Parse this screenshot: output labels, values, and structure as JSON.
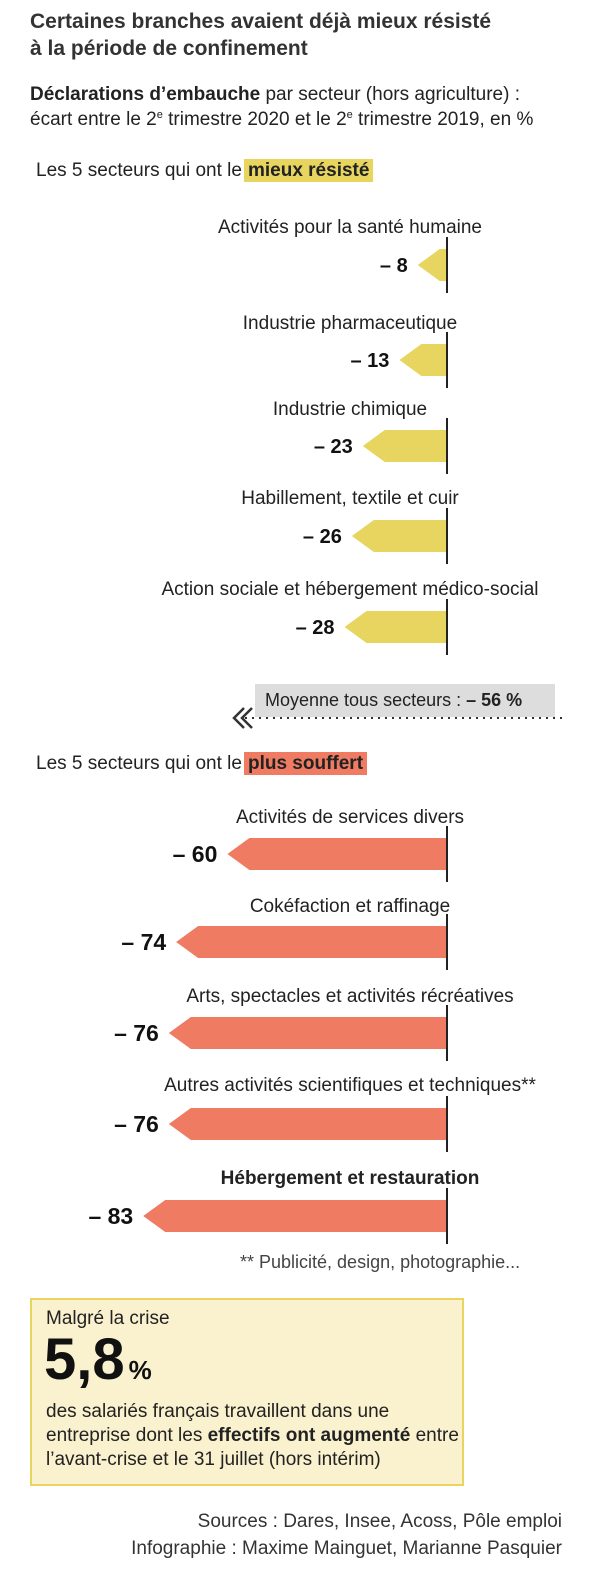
{
  "title_line1": "Certaines branches avaient  déjà mieux résisté",
  "title_line2": "à la période  de confinement",
  "subtitle": {
    "bold": "Déclarations d’embauche",
    "rest1": " par secteur (hors agriculture) :",
    "line2_a": "écart entre le 2",
    "sup": "e",
    "line2_b": " trimestre 2020 et le 2",
    "line2_c": " trimestre 2019, en %"
  },
  "section_best": {
    "prefix": "Les 5 secteurs qui ont  le",
    "highlight": "mieux résisté"
  },
  "section_worst": {
    "prefix": "Les 5 secteurs qui ont  le",
    "highlight": "plus souffert"
  },
  "average": {
    "label": "Moyenne tous secteurs : ",
    "value": "– 56 %"
  },
  "footnote": "** Publicité, design, photographie...",
  "callout": {
    "pre": "Malgré la crise",
    "big": "5,8",
    "pct": "%",
    "text_a": "des salariés français travaillent dans une entreprise dont les ",
    "text_bold": "effectifs ont augmenté",
    "text_b": " entre l’avant-crise et le 31 juillet (hors intérim)"
  },
  "credits": {
    "sources": "Sources : Dares, Insee, Acoss, Pôle emploi",
    "infographie": "Infographie : Maxime Mainguet, Marianne Pasquier"
  },
  "colors": {
    "best": "#e8d55f",
    "worst": "#ee7b62",
    "axis": "#222222"
  },
  "chart_data": {
    "type": "bar",
    "orientation": "horizontal",
    "unit": "%",
    "groups": [
      {
        "name": "Les 5 secteurs qui ont le mieux résisté",
        "color": "#e8d55f",
        "categories": [
          "Activités pour la santé humaine",
          "Industrie pharmaceutique",
          "Industrie chimique",
          "Habillement, textile et cuir",
          "Action sociale et hébergement médico-social"
        ],
        "values": [
          -8,
          -13,
          -23,
          -26,
          -28
        ],
        "labels": [
          "– 8",
          "– 13",
          "– 23",
          "– 26",
          "– 28"
        ]
      },
      {
        "name": "Les 5 secteurs qui ont le plus souffert",
        "color": "#ee7b62",
        "categories": [
          "Activités de services divers",
          "Cokéfaction et raffinage",
          "Arts, spectacles et activités récréatives",
          "Autres activités scientifiques et techniques**",
          "Hébergement et restauration"
        ],
        "values": [
          -60,
          -74,
          -76,
          -76,
          -83
        ],
        "labels": [
          "– 60",
          "– 74",
          "– 76",
          "– 76",
          "– 83"
        ],
        "bold_category": "Hébergement et restauration"
      }
    ],
    "average": -56
  }
}
